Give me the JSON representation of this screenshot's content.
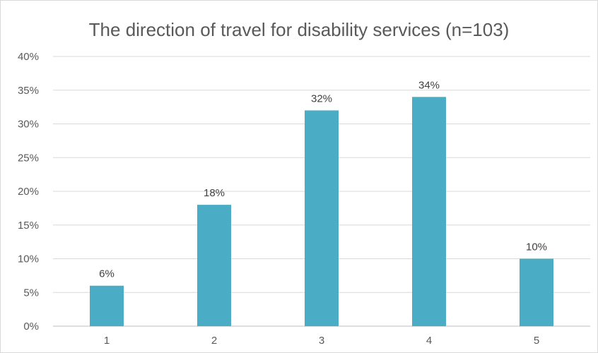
{
  "chart_data": {
    "type": "bar",
    "title": "The direction of travel for disability services (n=103)",
    "xlabel": "",
    "ylabel": "",
    "categories": [
      "1",
      "2",
      "3",
      "4",
      "5"
    ],
    "values": [
      6,
      18,
      32,
      34,
      10
    ],
    "data_labels": [
      "6%",
      "18%",
      "32%",
      "34%",
      "10%"
    ],
    "ylim": [
      0,
      40
    ],
    "y_ticks": [
      0,
      5,
      10,
      15,
      20,
      25,
      30,
      35,
      40
    ],
    "y_tick_labels": [
      "0%",
      "5%",
      "10%",
      "15%",
      "20%",
      "25%",
      "30%",
      "35%",
      "40%"
    ],
    "grid": true,
    "legend": "none",
    "bar_color": "#4BACC6",
    "grid_color": "#d9d9d9"
  }
}
